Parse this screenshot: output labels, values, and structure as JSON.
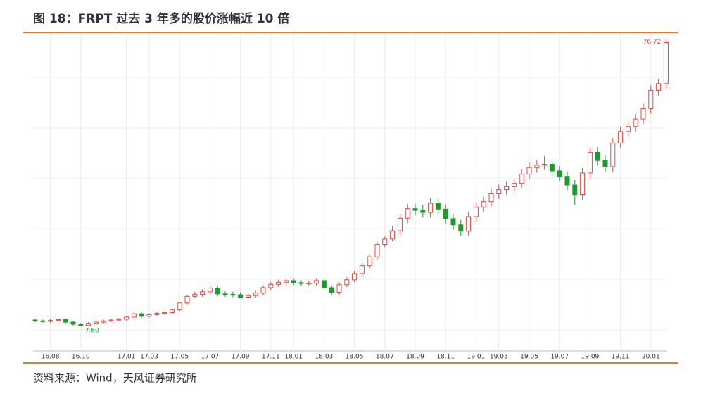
{
  "title": "图 18：FRPT 过去 3 年多的股价涨幅近 10 倍",
  "source": "资料来源：Wind，天风证券研究所",
  "chart_data": {
    "type": "candlestick",
    "categories": [
      null,
      null,
      "16.08",
      null,
      null,
      null,
      "16.10",
      null,
      null,
      null,
      null,
      null,
      "17.01",
      null,
      null,
      "17.03",
      null,
      null,
      null,
      "17.05",
      null,
      null,
      null,
      "17.07",
      null,
      null,
      null,
      "17.09",
      null,
      null,
      null,
      "17.11",
      null,
      null,
      "18.01",
      null,
      null,
      null,
      "18.03",
      null,
      null,
      null,
      "18.05",
      null,
      null,
      null,
      "18.07",
      null,
      null,
      null,
      "18.09",
      null,
      null,
      null,
      "18.11",
      null,
      null,
      null,
      "19.01",
      null,
      null,
      "19.03",
      null,
      null,
      null,
      "19.05",
      null,
      null,
      null,
      "19.07",
      null,
      null,
      null,
      "19.09",
      null,
      null,
      null,
      "19.11",
      null,
      null,
      null,
      "20.01",
      null,
      null
    ],
    "open": [
      9.1,
      8.9,
      8.8,
      9.0,
      9.2,
      8.6,
      8.1,
      7.8,
      8.3,
      8.6,
      8.9,
      9.1,
      9.3,
      9.8,
      10.6,
      10.0,
      10.4,
      10.7,
      10.9,
      11.6,
      13.2,
      14.8,
      15.3,
      15.9,
      16.8,
      15.4,
      15.3,
      15.2,
      14.6,
      15.0,
      15.6,
      16.9,
      17.7,
      18.2,
      18.6,
      18.1,
      17.9,
      18.0,
      18.6,
      16.9,
      15.8,
      17.6,
      18.8,
      20.3,
      22.2,
      24.3,
      27.3,
      28.6,
      30.6,
      33.6,
      35.9,
      35.5,
      35.0,
      37.2,
      35.8,
      33.5,
      32.0,
      30.5,
      34.0,
      36.3,
      37.6,
      39.5,
      40.5,
      41.2,
      42.0,
      44.2,
      45.8,
      46.4,
      46.6,
      45.0,
      43.7,
      41.6,
      39.3,
      44.5,
      49.5,
      47.5,
      46.0,
      51.7,
      54.5,
      55.7,
      57.5,
      60.0,
      64.4,
      66.0
    ],
    "high": [
      9.4,
      9.2,
      9.3,
      9.5,
      9.5,
      8.9,
      8.4,
      8.6,
      8.9,
      9.2,
      9.4,
      9.6,
      10.1,
      10.9,
      10.9,
      10.7,
      11.0,
      11.2,
      11.9,
      13.5,
      15.1,
      15.9,
      16.5,
      17.4,
      17.4,
      16.0,
      15.9,
      15.8,
      15.6,
      16.2,
      17.5,
      18.3,
      18.8,
      19.2,
      19.2,
      18.7,
      18.6,
      19.2,
      19.2,
      17.5,
      18.2,
      19.4,
      20.9,
      22.8,
      24.9,
      27.9,
      29.2,
      31.8,
      34.8,
      37.1,
      37.1,
      36.7,
      38.4,
      38.4,
      37.0,
      34.7,
      33.2,
      35.2,
      37.5,
      38.8,
      40.7,
      41.7,
      42.4,
      43.2,
      45.4,
      47.0,
      47.6,
      48.6,
      47.8,
      46.2,
      44.9,
      42.8,
      45.7,
      50.7,
      50.7,
      48.7,
      52.9,
      55.7,
      56.9,
      58.7,
      61.2,
      65.6,
      67.2,
      76.72
    ],
    "low": [
      8.6,
      8.5,
      8.5,
      8.7,
      8.3,
      7.8,
      7.6,
      7.7,
      8.0,
      8.3,
      8.6,
      8.8,
      9.0,
      9.5,
      9.7,
      9.7,
      10.1,
      10.4,
      10.6,
      11.3,
      12.9,
      14.5,
      14.7,
      15.3,
      14.8,
      14.7,
      14.6,
      14.3,
      14.3,
      14.4,
      15.0,
      16.3,
      17.1,
      17.6,
      17.5,
      17.3,
      17.3,
      17.4,
      16.3,
      15.2,
      15.2,
      17.0,
      18.2,
      19.7,
      21.6,
      23.7,
      26.7,
      28.0,
      29.4,
      32.4,
      34.3,
      33.8,
      33.8,
      34.6,
      32.3,
      30.8,
      29.3,
      29.3,
      32.8,
      35.1,
      36.4,
      38.3,
      39.3,
      40.0,
      40.8,
      43.0,
      44.6,
      45.2,
      43.8,
      42.5,
      40.4,
      36.8,
      38.1,
      43.3,
      46.3,
      44.8,
      44.8,
      50.5,
      53.3,
      54.5,
      56.3,
      58.8,
      63.2,
      64.8
    ],
    "close": [
      8.9,
      8.8,
      9.0,
      9.2,
      8.6,
      8.1,
      7.8,
      8.3,
      8.6,
      8.9,
      9.1,
      9.3,
      9.8,
      10.6,
      10.0,
      10.4,
      10.7,
      10.9,
      11.6,
      13.2,
      14.8,
      15.3,
      15.9,
      16.8,
      15.4,
      15.3,
      15.2,
      14.6,
      15.0,
      15.6,
      16.9,
      17.7,
      18.2,
      18.6,
      18.1,
      17.9,
      18.0,
      18.6,
      16.9,
      15.8,
      17.6,
      18.8,
      20.3,
      22.2,
      24.3,
      27.3,
      28.6,
      30.6,
      33.6,
      35.9,
      35.5,
      35.0,
      37.2,
      35.8,
      33.5,
      32.0,
      30.5,
      34.0,
      36.3,
      37.6,
      39.5,
      40.5,
      41.2,
      42.0,
      44.2,
      45.8,
      46.4,
      46.6,
      45.0,
      43.7,
      41.6,
      39.3,
      44.5,
      49.5,
      47.5,
      46.0,
      51.7,
      54.5,
      55.7,
      57.5,
      60.0,
      64.4,
      66.0,
      75.9
    ],
    "value_labels": [
      {
        "index": 83,
        "field": "high",
        "label": "76.72"
      },
      {
        "index": 6,
        "field": "low",
        "label": "7.60"
      }
    ],
    "up_color": "#e8473f",
    "down_color": "#1a9c2a",
    "ylim": [
      2,
      78
    ],
    "grid": true
  }
}
